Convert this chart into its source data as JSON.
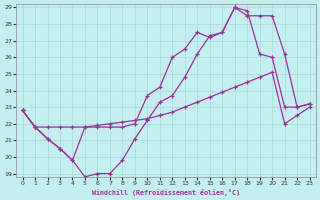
{
  "xlabel": "Windchill (Refroidissement éolien,°C)",
  "bg_color": "#c5eef0",
  "grid_color": "#a8dcdc",
  "line_color": "#993399",
  "xlim": [
    -0.5,
    23.5
  ],
  "ylim": [
    18.8,
    29.2
  ],
  "xticks": [
    0,
    1,
    2,
    3,
    4,
    5,
    6,
    7,
    8,
    9,
    10,
    11,
    12,
    13,
    14,
    15,
    16,
    17,
    18,
    19,
    20,
    21,
    22,
    23
  ],
  "yticks": [
    19,
    20,
    21,
    22,
    23,
    24,
    25,
    26,
    27,
    28,
    29
  ],
  "line1_x": [
    0,
    1,
    2,
    3,
    4,
    5,
    6,
    7,
    8,
    9,
    10,
    11,
    12,
    13,
    14,
    15,
    16,
    17,
    18,
    19,
    20,
    21,
    22,
    23
  ],
  "line1_y": [
    22.8,
    21.8,
    21.1,
    20.5,
    19.8,
    18.8,
    19.0,
    19.0,
    19.8,
    21.1,
    22.2,
    23.3,
    23.7,
    24.8,
    26.2,
    27.3,
    27.5,
    29.0,
    28.8,
    26.2,
    26.0,
    23.0,
    23.0,
    23.2
  ],
  "line2_x": [
    0,
    1,
    2,
    3,
    4,
    5,
    6,
    7,
    8,
    9,
    10,
    11,
    12,
    13,
    14,
    15,
    16,
    17,
    18,
    19,
    20,
    21,
    22,
    23
  ],
  "line2_y": [
    22.8,
    21.8,
    21.8,
    21.8,
    21.8,
    21.8,
    21.9,
    22.0,
    22.1,
    22.2,
    22.3,
    22.5,
    22.7,
    23.0,
    23.3,
    23.6,
    23.9,
    24.2,
    24.5,
    24.8,
    25.1,
    22.0,
    22.5,
    23.0
  ],
  "line3_x": [
    0,
    1,
    2,
    3,
    4,
    5,
    6,
    7,
    8,
    9,
    10,
    11,
    12,
    13,
    14,
    15,
    16,
    17,
    18,
    19,
    20,
    21,
    22,
    23
  ],
  "line3_y": [
    22.8,
    21.8,
    21.1,
    20.5,
    19.8,
    21.8,
    21.8,
    21.8,
    21.8,
    22.0,
    23.7,
    24.2,
    26.0,
    26.5,
    27.5,
    27.2,
    27.5,
    29.0,
    28.5,
    28.5,
    28.5,
    26.2,
    23.0,
    23.2
  ]
}
